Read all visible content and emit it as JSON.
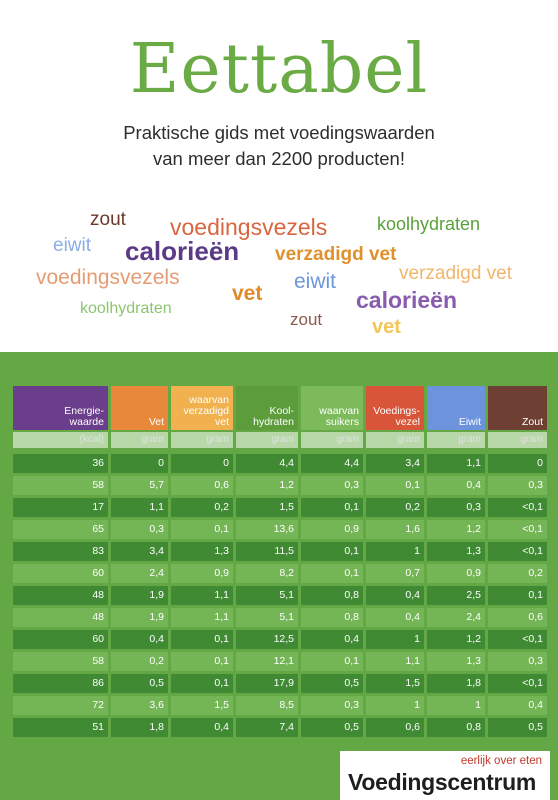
{
  "cover": {
    "title": "Eettabel",
    "subtitle_line1": "Praktische gids met voedingswaarden",
    "subtitle_line2": "van meer dan 2200 producten!"
  },
  "word_cloud": [
    {
      "text": "zout",
      "color": "#6b3a2a"
    },
    {
      "text": "voedingsvezels",
      "color": "#d9663e"
    },
    {
      "text": "koolhydraten",
      "color": "#5aa13a"
    },
    {
      "text": "eiwit",
      "color": "#8aaee6"
    },
    {
      "text": "calorieën",
      "color": "#5b3b86"
    },
    {
      "text": "verzadigd vet",
      "color": "#e0912e"
    },
    {
      "text": "voedingsvezels",
      "color": "#e59c72"
    },
    {
      "text": "eiwit",
      "color": "#6d96dc"
    },
    {
      "text": "verzadigd vet",
      "color": "#f0b66b"
    },
    {
      "text": "vet",
      "color": "#e08a2a"
    },
    {
      "text": "calorieën",
      "color": "#8a5cb0"
    },
    {
      "text": "koolhydraten",
      "color": "#8cc56e"
    },
    {
      "text": "zout",
      "color": "#8a5a4a"
    },
    {
      "text": "vet",
      "color": "#f2c75a"
    }
  ],
  "table": {
    "columns": [
      {
        "header": "Energie-\nwaarde",
        "unit": "(kcal)",
        "color": "#6a3e8a"
      },
      {
        "header": "Vet",
        "unit": "gram",
        "color": "#e8883a"
      },
      {
        "header": "waarvan\nverzadigd\nvet",
        "unit": "gram",
        "color": "#f0b14e"
      },
      {
        "header": "Kool-\nhydraten",
        "unit": "gram",
        "color": "#5c9c3b"
      },
      {
        "header": "waarvan\nsuikers",
        "unit": "gram",
        "color": "#7dbb5a"
      },
      {
        "header": "Voedings-\nvezel",
        "unit": "gram",
        "color": "#d8553a"
      },
      {
        "header": "Eiwit",
        "unit": "gram",
        "color": "#6c93db"
      },
      {
        "header": "Zout",
        "unit": "gram",
        "color": "#6e3f33"
      }
    ],
    "rows": [
      [
        "36",
        "0",
        "0",
        "4,4",
        "4,4",
        "3,4",
        "1,1",
        "0"
      ],
      [
        "58",
        "5,7",
        "0,6",
        "1,2",
        "0,3",
        "0,1",
        "0,4",
        "0,3"
      ],
      [
        "17",
        "1,1",
        "0,2",
        "1,5",
        "0,1",
        "0,2",
        "0,3",
        "<0,1"
      ],
      [
        "65",
        "0,3",
        "0,1",
        "13,6",
        "0,9",
        "1,6",
        "1,2",
        "<0,1"
      ],
      [
        "83",
        "3,4",
        "1,3",
        "11,5",
        "0,1",
        "1",
        "1,3",
        "<0,1"
      ],
      [
        "60",
        "2,4",
        "0,9",
        "8,2",
        "0,1",
        "0,7",
        "0,9",
        "0,2"
      ],
      [
        "48",
        "1,9",
        "1,1",
        "5,1",
        "0,8",
        "0,4",
        "2,5",
        "0,1"
      ],
      [
        "48",
        "1,9",
        "1,1",
        "5,1",
        "0,8",
        "0,4",
        "2,4",
        "0,6"
      ],
      [
        "60",
        "0,4",
        "0,1",
        "12,5",
        "0,4",
        "1",
        "1,2",
        "<0,1"
      ],
      [
        "58",
        "0,2",
        "0,1",
        "12,1",
        "0,1",
        "1,1",
        "1,3",
        "0,3"
      ],
      [
        "86",
        "0,5",
        "0,1",
        "17,9",
        "0,5",
        "1,5",
        "1,8",
        "<0,1"
      ],
      [
        "72",
        "3,6",
        "1,5",
        "8,5",
        "0,3",
        "1",
        "1",
        "0,4"
      ],
      [
        "51",
        "1,8",
        "0,4",
        "7,4",
        "0,5",
        "0,6",
        "0,8",
        "0,5"
      ]
    ]
  },
  "publisher": {
    "tagline": "eerlijk over eten",
    "name": "Voedingscentrum"
  }
}
